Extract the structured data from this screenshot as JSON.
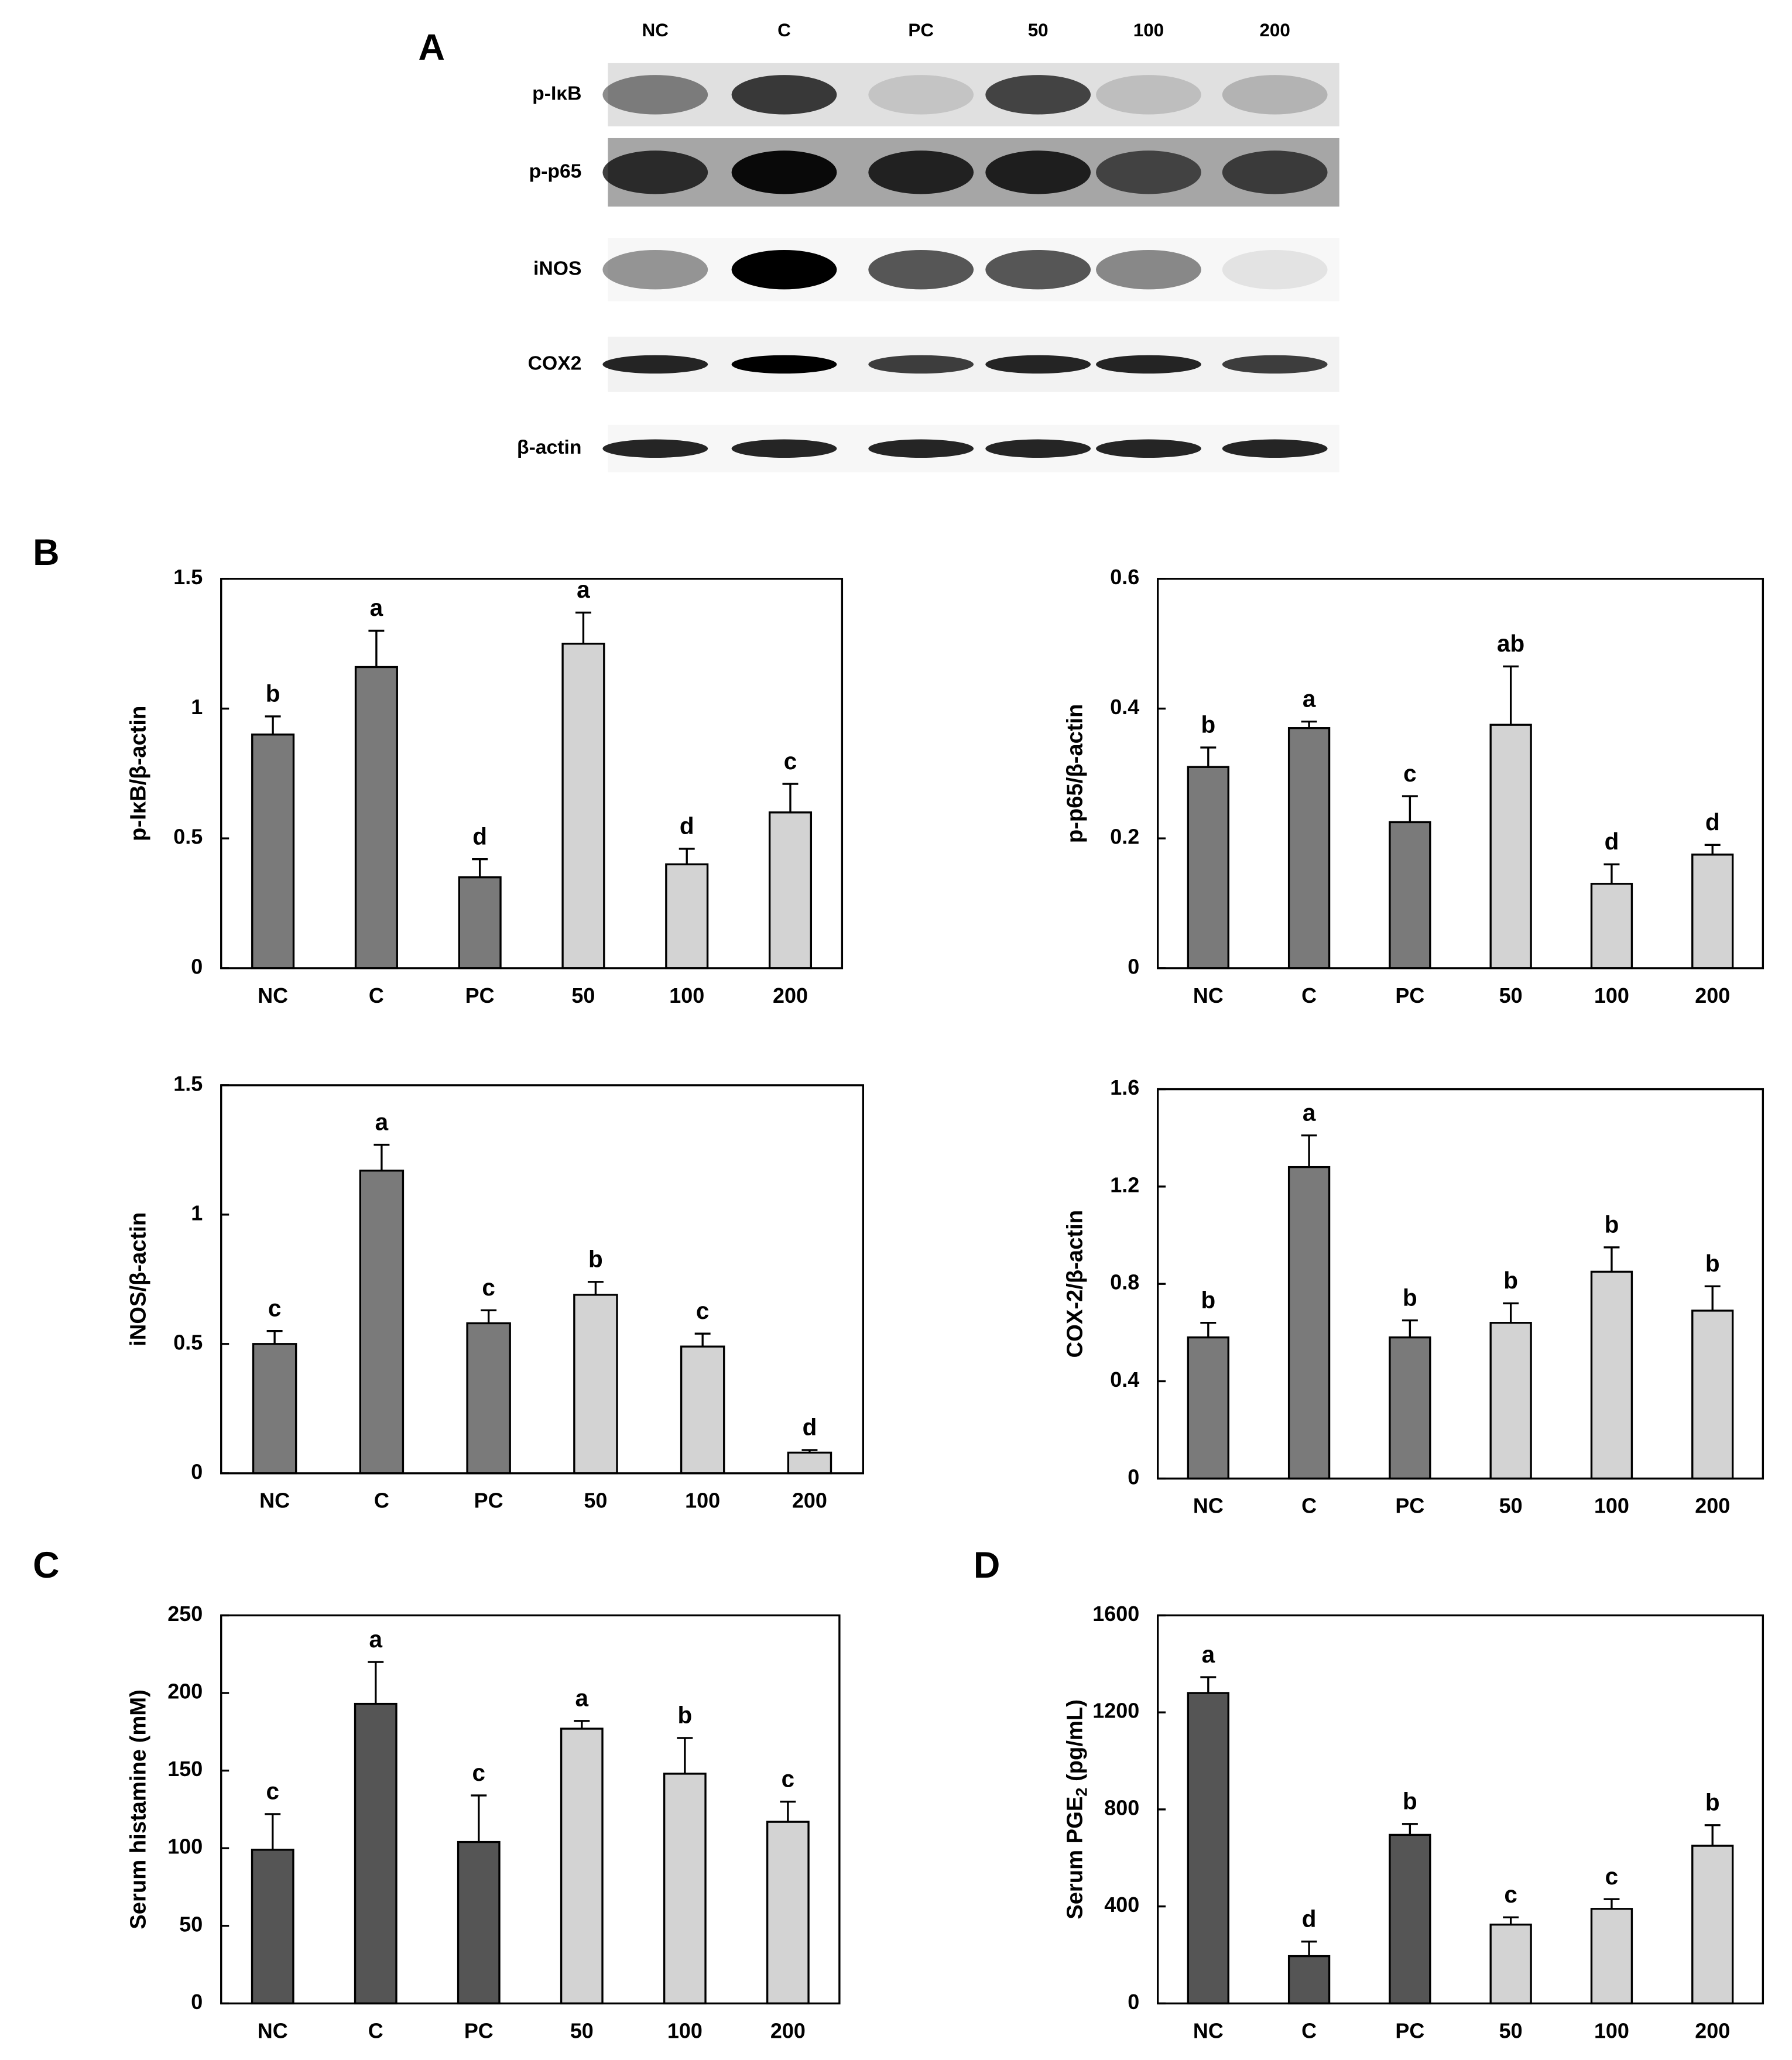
{
  "panel_labels": [
    "A",
    "B",
    "C",
    "D"
  ],
  "blot": {
    "lanes": [
      "NC",
      "C",
      "PC",
      "50",
      "100",
      "200"
    ],
    "proteins": [
      "p-IκB",
      "p-p65",
      "iNOS",
      "COX2",
      "β-actin"
    ]
  },
  "chart_data": [
    {
      "type": "bar",
      "ylabel": "p-IκB/β-actin",
      "categories": [
        "NC",
        "C",
        "PC",
        "50",
        "100",
        "200"
      ],
      "values": [
        0.9,
        1.16,
        0.35,
        1.25,
        0.4,
        0.6
      ],
      "errors": [
        0.07,
        0.14,
        0.07,
        0.12,
        0.06,
        0.11
      ],
      "annotations": [
        "b",
        "a",
        "d",
        "a",
        "d",
        "c"
      ],
      "colors": [
        "#7a7a7a",
        "#7a7a7a",
        "#7a7a7a",
        "#d3d3d3",
        "#d3d3d3",
        "#d3d3d3"
      ],
      "ylim": [
        0,
        1.5
      ],
      "yticks": [
        0,
        0.5,
        1,
        1.5
      ]
    },
    {
      "type": "bar",
      "ylabel": "p-p65/β-actin",
      "categories": [
        "NC",
        "C",
        "PC",
        "50",
        "100",
        "200"
      ],
      "values": [
        0.31,
        0.37,
        0.225,
        0.375,
        0.13,
        0.175
      ],
      "errors": [
        0.03,
        0.01,
        0.04,
        0.09,
        0.03,
        0.015
      ],
      "annotations": [
        "b",
        "a",
        "c",
        "ab",
        "d",
        "d"
      ],
      "colors": [
        "#7a7a7a",
        "#7a7a7a",
        "#7a7a7a",
        "#d3d3d3",
        "#d3d3d3",
        "#d3d3d3"
      ],
      "ylim": [
        0,
        0.6
      ],
      "yticks": [
        0,
        0.2,
        0.4,
        0.6
      ]
    },
    {
      "type": "bar",
      "ylabel": "iNOS/β-actin",
      "categories": [
        "NC",
        "C",
        "PC",
        "50",
        "100",
        "200"
      ],
      "values": [
        0.5,
        1.17,
        0.58,
        0.69,
        0.49,
        0.08
      ],
      "errors": [
        0.05,
        0.1,
        0.05,
        0.05,
        0.05,
        0.01
      ],
      "annotations": [
        "c",
        "a",
        "c",
        "b",
        "c",
        "d"
      ],
      "colors": [
        "#7a7a7a",
        "#7a7a7a",
        "#7a7a7a",
        "#d3d3d3",
        "#d3d3d3",
        "#d3d3d3"
      ],
      "ylim": [
        0,
        1.5
      ],
      "yticks": [
        0,
        0.5,
        1,
        1.5
      ]
    },
    {
      "type": "bar",
      "ylabel": "COX-2/β-actin",
      "categories": [
        "NC",
        "C",
        "PC",
        "50",
        "100",
        "200"
      ],
      "values": [
        0.58,
        1.28,
        0.58,
        0.64,
        0.85,
        0.69
      ],
      "errors": [
        0.06,
        0.13,
        0.07,
        0.08,
        0.1,
        0.1
      ],
      "annotations": [
        "b",
        "a",
        "b",
        "b",
        "b",
        "b"
      ],
      "colors": [
        "#7a7a7a",
        "#7a7a7a",
        "#7a7a7a",
        "#d3d3d3",
        "#d3d3d3",
        "#d3d3d3"
      ],
      "ylim": [
        0,
        1.6
      ],
      "yticks": [
        0,
        0.4,
        0.8,
        1.2,
        1.6
      ]
    },
    {
      "type": "bar",
      "ylabel": "Serum histamine (mM)",
      "categories": [
        "NC",
        "C",
        "PC",
        "50",
        "100",
        "200"
      ],
      "values": [
        99,
        193,
        104,
        177,
        148,
        117
      ],
      "errors": [
        23,
        27,
        30,
        5,
        23,
        13
      ],
      "annotations": [
        "c",
        "a",
        "c",
        "a",
        "b",
        "c"
      ],
      "colors": [
        "#555555",
        "#555555",
        "#555555",
        "#d3d3d3",
        "#d3d3d3",
        "#d3d3d3"
      ],
      "ylim": [
        0,
        250
      ],
      "yticks": [
        0,
        50,
        100,
        150,
        200,
        250
      ]
    },
    {
      "type": "bar",
      "ylabel": [
        "Serum PGE",
        "2",
        " (pg/mL)"
      ],
      "categories": [
        "NC",
        "C",
        "PC",
        "50",
        "100",
        "200"
      ],
      "values": [
        1280,
        195,
        695,
        325,
        390,
        650
      ],
      "errors": [
        65,
        60,
        45,
        30,
        40,
        85
      ],
      "annotations": [
        "a",
        "d",
        "b",
        "c",
        "c",
        "b"
      ],
      "colors": [
        "#555555",
        "#555555",
        "#555555",
        "#d3d3d3",
        "#d3d3d3",
        "#d3d3d3"
      ],
      "ylim": [
        0,
        1600
      ],
      "yticks": [
        0,
        400,
        800,
        1200,
        1600
      ]
    }
  ]
}
